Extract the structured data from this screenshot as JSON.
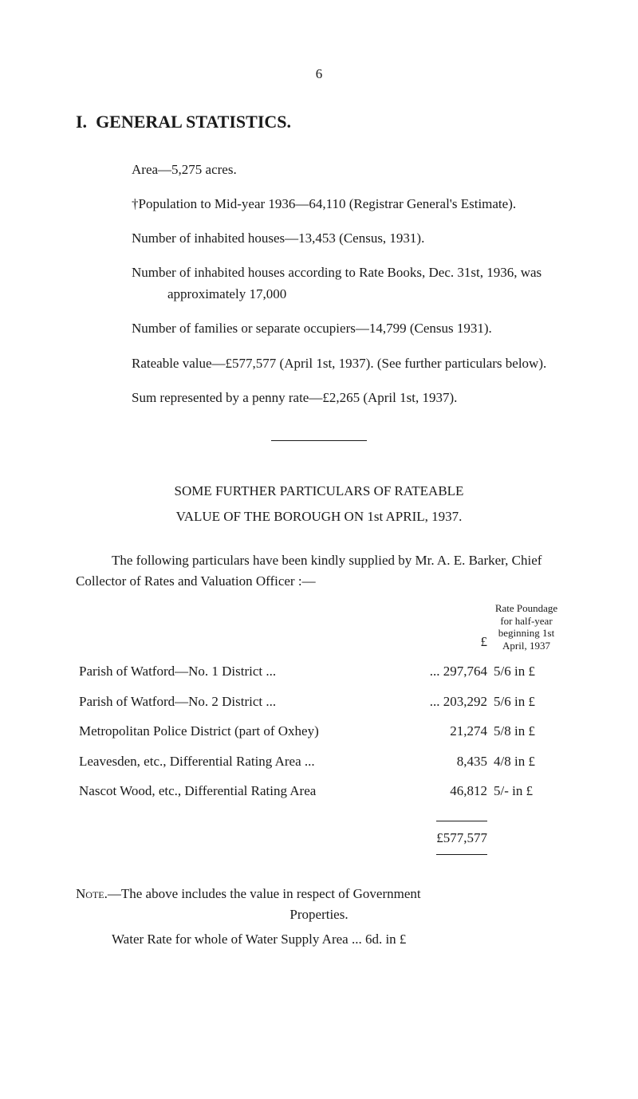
{
  "page_number": "6",
  "section": {
    "number": "I.",
    "title": "GENERAL STATISTICS."
  },
  "stats": {
    "area": "Area—5,275 acres.",
    "population": "†Population to Mid-year 1936—64,110 (Registrar General's Estimate).",
    "houses_census": "Number of inhabited houses—13,453 (Census, 1931).",
    "houses_rate": "Number of inhabited houses according to Rate Books, Dec. 31st, 1936, was approximately 17,000",
    "families": "Number of families or separate occupiers—14,799 (Census 1931).",
    "rateable": "Rateable value—£577,577 (April 1st, 1937). (See further particulars below).",
    "penny_rate": "Sum represented by a penny rate—£2,265 (April 1st, 1937)."
  },
  "subheading_1": "SOME FURTHER PARTICULARS OF RATEABLE",
  "subheading_2": "VALUE OF THE BOROUGH ON 1st APRIL, 1937.",
  "intro_para": "The following particulars have been kindly supplied by Mr. A. E. Barker, Chief Collector of Rates and Valuation Officer :—",
  "table": {
    "header_pound": "£",
    "header_rate": "Rate Poundage for half-year beginning 1st April, 1937",
    "rows": [
      {
        "desc": "Parish of Watford—No. 1 District ...",
        "value": "... 297,764",
        "rate": "5/6 in £"
      },
      {
        "desc": "Parish of Watford—No. 2 District ...",
        "value": "... 203,292",
        "rate": "5/6 in £"
      },
      {
        "desc": "Metropolitan Police District (part of Oxhey)",
        "value": "21,274",
        "rate": "5/8 in £"
      },
      {
        "desc": "Leavesden, etc., Differential Rating Area ...",
        "value": "8,435",
        "rate": "4/8 in £"
      },
      {
        "desc": "Nascot Wood, etc., Differential Rating Area",
        "value": "46,812",
        "rate": "5/- in £"
      }
    ],
    "total": "£577,577"
  },
  "note_label": "Note.",
  "note_text": "—The above includes the value in respect of Government",
  "note_text_2": "Properties.",
  "water_rate": "Water Rate for whole of Water Supply Area ... 6d. in £"
}
